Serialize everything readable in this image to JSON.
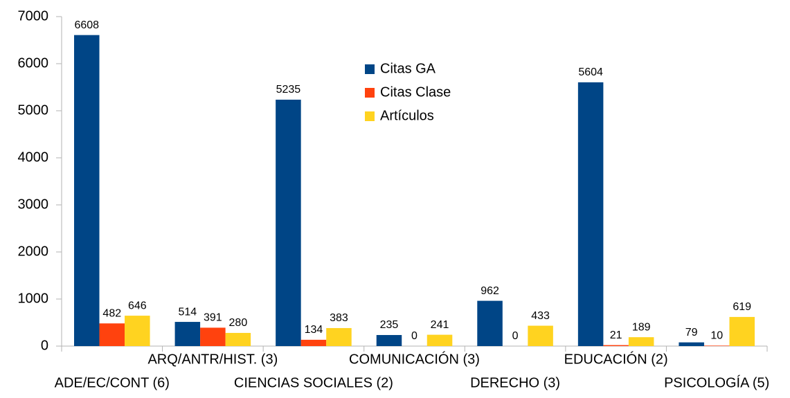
{
  "chart_data": {
    "type": "bar",
    "categories": [
      "ADE/EC/CONT (6)",
      "ARQ/ANTR/HIST. (3)",
      "CIENCIAS SOCIALES (2)",
      "COMUNICACIÓN (3)",
      "DERECHO (3)",
      "EDUCACIÓN (2)",
      "PSICOLOGÍA (5)"
    ],
    "series": [
      {
        "name": "Citas GA",
        "color": "#004586",
        "values": [
          6608,
          514,
          5235,
          235,
          962,
          5604,
          79
        ]
      },
      {
        "name": "Citas Clase",
        "color": "#ff420e",
        "values": [
          482,
          391,
          134,
          0,
          0,
          21,
          10
        ]
      },
      {
        "name": "Artículos",
        "color": "#ffd320",
        "values": [
          646,
          280,
          383,
          241,
          433,
          189,
          619
        ]
      }
    ],
    "ylim": [
      0,
      7000
    ],
    "yticks": [
      0,
      1000,
      2000,
      3000,
      4000,
      5000,
      6000,
      7000
    ],
    "grid": false,
    "legend": "top"
  }
}
